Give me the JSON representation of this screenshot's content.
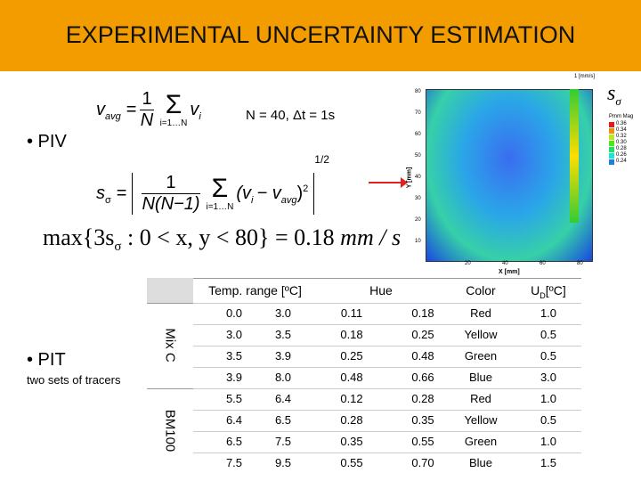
{
  "header": {
    "title": "EXPERIMENTAL UNCERTAINTY ESTIMATION"
  },
  "piv": {
    "bullet": "• PIV",
    "params": "N = 40, Δt = 1s",
    "mean": {
      "lhs": "v",
      "lhs_sub": "avg",
      "eq": "=",
      "num": "1",
      "den": "N",
      "sum": "Σ",
      "range": "i=1…N",
      "term": "v",
      "term_sub": "i"
    },
    "std": {
      "lhs": "s",
      "lhs_sub": "σ",
      "eq": "=",
      "num": "1",
      "den": "N(N−1)",
      "sum": "Σ",
      "range": "i=1…N",
      "term": "(v",
      "term_sub": "i",
      "minus": "− v",
      "minus_sub": "avg",
      "close": ")",
      "sq": "2",
      "pow": "1/2"
    },
    "max": {
      "a": "max{3s",
      "sub": "σ",
      "b": ": 0 < x, y < 80} = 0.18",
      "unit": "mm / s"
    },
    "plot": {
      "symbol": "s",
      "symbol_sub": "σ",
      "corner": "1 [mm/s]",
      "legend_title": "Pmm Mag",
      "legend_values": [
        "0.36",
        "0.34",
        "0.32",
        "0.30",
        "0.28",
        "0.26",
        "0.24"
      ],
      "x_label": "X [mm]",
      "y_label": "Y [mm]",
      "x_ticks": [
        "20",
        "40",
        "60",
        "80"
      ],
      "y_ticks": [
        "80",
        "70",
        "60",
        "50",
        "40",
        "30",
        "20",
        "10"
      ]
    }
  },
  "pit": {
    "bullet": "• PIT",
    "note": "two sets of tracers"
  },
  "table": {
    "headers": [
      "Temp. range [ºC]",
      "Hue",
      "Color",
      "U",
      "D",
      "[ºC]"
    ],
    "groups": [
      {
        "label": "Mix C",
        "rows": 4
      },
      {
        "label": "BM100",
        "rows": 4
      }
    ],
    "rows": [
      [
        "0.0",
        "3.0",
        "0.11",
        "0.18",
        "Red",
        "1.0"
      ],
      [
        "3.0",
        "3.5",
        "0.18",
        "0.25",
        "Yellow",
        "0.5"
      ],
      [
        "3.5",
        "3.9",
        "0.25",
        "0.48",
        "Green",
        "0.5"
      ],
      [
        "3.9",
        "8.0",
        "0.48",
        "0.66",
        "Blue",
        "3.0"
      ],
      [
        "5.5",
        "6.4",
        "0.12",
        "0.28",
        "Red",
        "1.0"
      ],
      [
        "6.4",
        "6.5",
        "0.28",
        "0.35",
        "Yellow",
        "0.5"
      ],
      [
        "6.5",
        "7.5",
        "0.35",
        "0.55",
        "Green",
        "1.0"
      ],
      [
        "7.5",
        "9.5",
        "0.55",
        "0.70",
        "Blue",
        "1.5"
      ]
    ]
  }
}
